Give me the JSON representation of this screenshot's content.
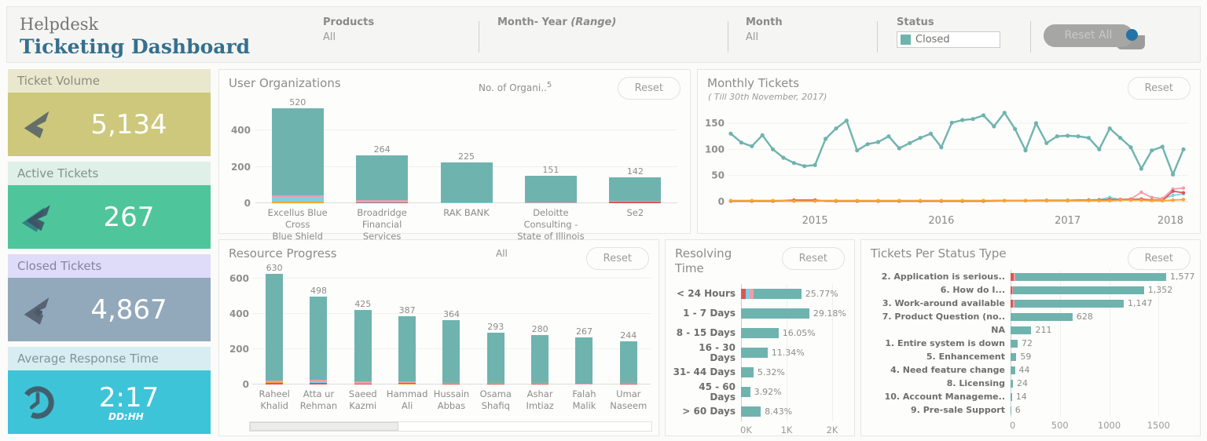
{
  "header": {
    "title_line1": "Helpdesk",
    "title_line2": "Ticketing Dashboard",
    "filters": [
      {
        "label": "Products",
        "value": "All"
      },
      {
        "label": "Month- Year",
        "sublabel": "(Range)",
        "value": ""
      },
      {
        "label": "Month",
        "value": "All"
      },
      {
        "label": "Status",
        "value": "Closed"
      }
    ],
    "reset_all_label": "Reset All"
  },
  "kpis": [
    {
      "title": "Ticket Volume",
      "value": "5,134",
      "icon": "ticket-icon",
      "header_bg": "#e9e8cd",
      "header_fg": "#8b8b80",
      "body_bg": "#cdc87b"
    },
    {
      "title": "Active Tickets",
      "value": "267",
      "icon": "ticket-active-icon",
      "header_bg": "#dff0e8",
      "header_fg": "#7f948a",
      "body_bg": "#4fc59b"
    },
    {
      "title": "Closed Tickets",
      "value": "4,867",
      "icon": "ticket-plus-icon",
      "header_bg": "#dedcf8",
      "header_fg": "#84849c",
      "body_bg": "#92a9bb"
    },
    {
      "title": "Average Response Time",
      "value": "2:17",
      "unit": "DD:HH",
      "icon": "clock-icon",
      "header_bg": "#d7edf2",
      "header_fg": "#7d959c",
      "body_bg": "#3ec4d8"
    }
  ],
  "panels": {
    "user_orgs": {
      "title": "User Organizations",
      "meta_label": "No. of Organi..",
      "meta_value": "5",
      "reset_label": "Reset"
    },
    "monthly": {
      "title": "Monthly Tickets",
      "subtitle": "( Till 30th November, 2017)",
      "reset_label": "Reset"
    },
    "resource": {
      "title": "Resource Progress",
      "meta": "All",
      "reset_label": "Reset"
    },
    "resolving": {
      "title": "Resolving Time",
      "reset_label": "Reset"
    },
    "status_type": {
      "title": "Tickets Per Status Type",
      "reset_label": "Reset"
    }
  },
  "colors": {
    "teal": "#6fb3ae",
    "sky": "#7fd0e4",
    "pink": "#f29ca6",
    "red": "#d95757",
    "orange": "#f6a432"
  },
  "chart_data": [
    {
      "id": "user_orgs",
      "type": "bar",
      "title": "User Organizations",
      "categories": [
        [
          "Excellus Blue Cross",
          "Blue Shield"
        ],
        [
          "Broadridge Financial",
          "Services"
        ],
        [
          "RAK BANK"
        ],
        [
          "Deloitte Consulting -",
          "State of Illinois"
        ],
        [
          "Se2"
        ]
      ],
      "values": [
        520,
        264,
        225,
        151,
        142
      ],
      "value_labels": [
        "520",
        "264",
        "225",
        "151",
        "142"
      ],
      "stacks": [
        [
          [
            "orange",
            8
          ],
          [
            "sky",
            26
          ],
          [
            "pink",
            8
          ],
          [
            "teal",
            478
          ]
        ],
        [
          [
            "red",
            6
          ],
          [
            "sky",
            5
          ],
          [
            "pink",
            6
          ],
          [
            "teal",
            247
          ]
        ],
        [
          [
            "sky",
            6
          ],
          [
            "teal",
            219
          ]
        ],
        [
          [
            "pink",
            5
          ],
          [
            "teal",
            146
          ]
        ],
        [
          [
            "red",
            8
          ],
          [
            "pink",
            7
          ],
          [
            "teal",
            127
          ]
        ]
      ],
      "ylabel": "",
      "ylim": [
        0,
        560
      ],
      "yticks": [
        0,
        200,
        400
      ],
      "grid": true
    },
    {
      "id": "monthly",
      "type": "line",
      "title": "Monthly Tickets",
      "subtitle": "( Till 30th November, 2017)",
      "x_year_labels": [
        "2015",
        "2016",
        "2017",
        "2018"
      ],
      "year_tick_indices": [
        8,
        20,
        32,
        43
      ],
      "ylim": [
        0,
        180
      ],
      "yticks": [
        0,
        50,
        100,
        150
      ],
      "grid": true,
      "legend": "none",
      "series": [
        {
          "name": "teal",
          "color": "teal",
          "values": [
            130,
            113,
            106,
            127,
            100,
            84,
            74,
            68,
            70,
            120,
            140,
            155,
            98,
            110,
            114,
            125,
            102,
            112,
            122,
            130,
            104,
            151,
            156,
            158,
            165,
            144,
            170,
            139,
            98,
            150,
            112,
            125,
            126,
            125,
            122,
            100,
            140,
            122,
            104,
            63,
            98,
            105,
            52,
            100
          ]
        },
        {
          "name": "sky",
          "color": "sky",
          "values": [
            2,
            2,
            2,
            2,
            2,
            2,
            2,
            2,
            2,
            2,
            2,
            2,
            2,
            2,
            2,
            2,
            2,
            2,
            2,
            2,
            2,
            2,
            2,
            2,
            2,
            2,
            2,
            2,
            2,
            3,
            3,
            3,
            3,
            3,
            3,
            4,
            8,
            4,
            5,
            4,
            3,
            5,
            12,
            15
          ]
        },
        {
          "name": "pink",
          "color": "pink",
          "values": [
            1,
            1,
            1,
            1,
            1,
            1,
            1,
            2,
            2,
            2,
            1,
            1,
            1,
            1,
            1,
            1,
            1,
            1,
            1,
            1,
            1,
            1,
            1,
            1,
            1,
            1,
            2,
            2,
            2,
            2,
            2,
            2,
            2,
            3,
            3,
            3,
            3,
            4,
            5,
            18,
            8,
            6,
            24,
            26
          ]
        },
        {
          "name": "red",
          "color": "red",
          "values": [
            1,
            1,
            1,
            1,
            1,
            2,
            3,
            3,
            3,
            1,
            1,
            1,
            1,
            1,
            1,
            1,
            1,
            1,
            1,
            1,
            1,
            1,
            1,
            1,
            1,
            2,
            2,
            2,
            2,
            2,
            2,
            2,
            2,
            3,
            3,
            3,
            4,
            4,
            4,
            5,
            3,
            2,
            20,
            17
          ]
        },
        {
          "name": "orange",
          "color": "orange",
          "values": [
            2,
            2,
            2,
            2,
            2,
            2,
            1,
            1,
            1,
            2,
            2,
            2,
            2,
            2,
            2,
            2,
            2,
            2,
            2,
            2,
            2,
            2,
            2,
            2,
            2,
            2,
            2,
            2,
            2,
            2,
            2,
            2,
            2,
            2,
            2,
            2,
            2,
            3,
            3,
            3,
            2,
            2,
            3,
            4
          ]
        }
      ]
    },
    {
      "id": "resource",
      "type": "bar",
      "title": "Resource Progress",
      "categories": [
        [
          "Raheel",
          "Khalid"
        ],
        [
          "Atta ur",
          "Rehman"
        ],
        [
          "Saeed",
          "Kazmi"
        ],
        [
          "Hammad Ali"
        ],
        [
          "Hussain",
          "Abbas"
        ],
        [
          "Osama",
          "Shafiq"
        ],
        [
          "Ashar",
          "Imtiaz"
        ],
        [
          "Falah Malik"
        ],
        [
          "Umar",
          "Naseem"
        ]
      ],
      "values": [
        630,
        498,
        425,
        387,
        364,
        293,
        280,
        267,
        244
      ],
      "value_labels": [
        "630",
        "498",
        "425",
        "387",
        "364",
        "293",
        "280",
        "267",
        "244"
      ],
      "stacks": [
        [
          [
            "red",
            7
          ],
          [
            "orange",
            5
          ],
          [
            "pink",
            9
          ],
          [
            "teal",
            609
          ]
        ],
        [
          [
            "red",
            8
          ],
          [
            "sky",
            8
          ],
          [
            "pink",
            10
          ],
          [
            "teal",
            472
          ]
        ],
        [
          [
            "red",
            6
          ],
          [
            "pink",
            14
          ],
          [
            "teal",
            405
          ]
        ],
        [
          [
            "orange",
            5
          ],
          [
            "red",
            5
          ],
          [
            "pink",
            6
          ],
          [
            "teal",
            371
          ]
        ],
        [
          [
            "red",
            4
          ],
          [
            "pink",
            5
          ],
          [
            "teal",
            355
          ]
        ],
        [
          [
            "red",
            4
          ],
          [
            "pink",
            4
          ],
          [
            "teal",
            285
          ]
        ],
        [
          [
            "red",
            3
          ],
          [
            "pink",
            5
          ],
          [
            "teal",
            272
          ]
        ],
        [
          [
            "pink",
            4
          ],
          [
            "teal",
            263
          ]
        ],
        [
          [
            "red",
            4
          ],
          [
            "pink",
            5
          ],
          [
            "teal",
            235
          ]
        ]
      ],
      "ylim": [
        0,
        660
      ],
      "yticks": [
        0,
        200,
        400,
        600
      ],
      "grid": true
    },
    {
      "id": "resolving",
      "type": "bar-horizontal",
      "title": "Resolving Time",
      "categories": [
        "< 24 Hours",
        "1 - 7 Days",
        "8 - 15 Days",
        "16 - 30 Days",
        "31- 44 Days",
        "45 - 60 Days",
        "> 60 Days"
      ],
      "bar_values": [
        1323,
        1498,
        824,
        582,
        273,
        201,
        433
      ],
      "value_labels": [
        "25.77%",
        "29.18%",
        "16.05%",
        "11.34%",
        "5.32%",
        "3.92%",
        "8.43%"
      ],
      "stacks": [
        [
          [
            "red",
            100
          ],
          [
            "sky",
            90
          ],
          [
            "pink",
            80
          ]
        ],
        [],
        [],
        [],
        [],
        [],
        []
      ],
      "xlim": [
        0,
        2000
      ],
      "xticks": [
        {
          "v": 0,
          "label": "0K"
        },
        {
          "v": 1000,
          "label": "1K"
        },
        {
          "v": 2000,
          "label": "2K"
        }
      ]
    },
    {
      "id": "status_type",
      "type": "bar-horizontal",
      "title": "Tickets Per Status Type",
      "categories": [
        "2. Application is serious..",
        "6. How do I...",
        "3. Work-around available",
        "7. Product Question (no..",
        "NA",
        "1. Entire system is down",
        "5. Enhancement",
        "4. Need feature change",
        "8. Licensing",
        "10. Account Manageme..",
        "9. Pre-sale Support"
      ],
      "bar_values": [
        1577,
        1352,
        1147,
        628,
        211,
        72,
        59,
        44,
        24,
        14,
        6
      ],
      "value_labels": [
        "1,577",
        "1,352",
        "1,147",
        "628",
        "211",
        "72",
        "59",
        "44",
        "24",
        "14",
        "6"
      ],
      "stacks": [
        [
          [
            "red",
            28
          ],
          [
            "pink",
            22
          ]
        ],
        [
          [
            "red",
            14
          ],
          [
            "pink",
            12
          ]
        ],
        [
          [
            "red",
            22
          ],
          [
            "pink",
            20
          ]
        ],
        [],
        [],
        [],
        [],
        [],
        [],
        [],
        []
      ],
      "xlim": [
        0,
        1800
      ],
      "xticks": [
        {
          "v": 0,
          "label": "0"
        },
        {
          "v": 500,
          "label": "500"
        },
        {
          "v": 1000,
          "label": "1000"
        },
        {
          "v": 1500,
          "label": "1500"
        }
      ]
    }
  ]
}
